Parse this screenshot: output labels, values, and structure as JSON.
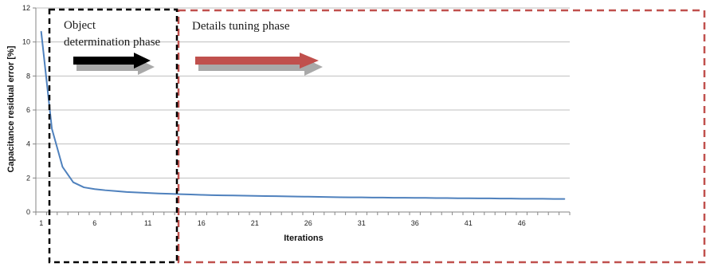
{
  "chart_data": {
    "type": "line",
    "title": "",
    "xlabel": "Iterations",
    "ylabel": "Capacitance residual error [%]",
    "xlim": [
      1,
      50
    ],
    "ylim": [
      0,
      12
    ],
    "y_ticks": [
      0,
      2,
      4,
      6,
      8,
      10,
      12
    ],
    "x_ticks": [
      1,
      6,
      11,
      16,
      21,
      26,
      31,
      36,
      41,
      46
    ],
    "grid": "horizontal major gridlines",
    "legend": "none",
    "series": [
      {
        "color": "#4f81bd",
        "x": [
          1,
          2,
          3,
          4,
          5,
          6,
          7,
          8,
          9,
          10,
          11,
          12,
          13,
          14,
          15,
          16,
          17,
          18,
          19,
          20,
          21,
          22,
          23,
          24,
          25,
          26,
          27,
          28,
          29,
          30,
          31,
          32,
          33,
          34,
          35,
          36,
          37,
          38,
          39,
          40,
          41,
          42,
          43,
          44,
          45,
          46,
          47,
          48,
          49,
          50
        ],
        "values": [
          10.6,
          4.9,
          2.65,
          1.75,
          1.45,
          1.35,
          1.28,
          1.23,
          1.18,
          1.15,
          1.12,
          1.09,
          1.07,
          1.05,
          1.03,
          1.01,
          0.99,
          0.98,
          0.97,
          0.96,
          0.95,
          0.94,
          0.93,
          0.92,
          0.91,
          0.9,
          0.89,
          0.88,
          0.87,
          0.86,
          0.86,
          0.85,
          0.85,
          0.84,
          0.84,
          0.83,
          0.83,
          0.82,
          0.82,
          0.81,
          0.81,
          0.8,
          0.8,
          0.79,
          0.79,
          0.78,
          0.78,
          0.78,
          0.77,
          0.77
        ]
      }
    ],
    "annotations": [
      {
        "text_lines": [
          "Object",
          "determination phase"
        ],
        "box_color": "#000000",
        "arrow_color": "#000000"
      },
      {
        "text_lines": [
          "Details tuning phase"
        ],
        "box_color": "#c0504d",
        "arrow_color": "#c0504d"
      }
    ]
  },
  "colors": {
    "line": "#4f81bd",
    "grid": "#bfbfbf",
    "axis": "#868686",
    "phase1_box": "#000000",
    "phase2_box": "#c0504d",
    "arrow_shadow": "#9a9a9a"
  }
}
